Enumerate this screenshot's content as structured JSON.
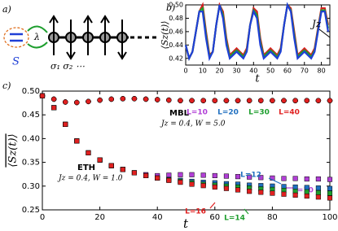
{
  "diagram": {
    "panel_label": "a)",
    "system_label": "S",
    "coupling_label": "λ",
    "site_labels": "σ₁ σ₂ ⋯"
  },
  "chart_data": [
    {
      "type": "line",
      "panel_label": "b)",
      "xlabel": "t",
      "ylabel": "⟨Sz(t)⟩",
      "annotations": [
        {
          "text": "Jz"
        }
      ],
      "x": [
        0,
        2,
        4,
        6,
        8,
        10,
        12,
        14,
        16,
        18,
        20,
        22,
        24,
        26,
        28,
        30,
        32,
        34,
        36,
        38,
        40,
        42,
        44,
        46,
        48,
        50,
        52,
        54,
        56,
        58,
        60,
        62,
        64,
        66,
        68,
        70,
        72,
        74,
        76,
        78,
        80,
        82,
        84
      ],
      "xlim": [
        0,
        85
      ],
      "xticks": [
        0,
        10,
        20,
        30,
        40,
        50,
        60,
        70,
        80
      ],
      "ylim": [
        0.41,
        0.5
      ],
      "yticks": [
        {
          "value": 0.42,
          "label": "0.42"
        },
        {
          "value": 0.44,
          "label": "0.44"
        },
        {
          "value": 0.46,
          "label": "0.46"
        },
        {
          "value": 0.48,
          "label": "0.48"
        },
        {
          "value": 0.5,
          "label": "0.50"
        }
      ],
      "series": [
        {
          "color": "#d62020",
          "values": [
            0.44,
            0.42,
            0.43,
            0.46,
            0.49,
            0.5,
            0.46,
            0.425,
            0.43,
            0.47,
            0.5,
            0.49,
            0.45,
            0.425,
            0.43,
            0.435,
            0.43,
            0.425,
            0.435,
            0.47,
            0.495,
            0.49,
            0.45,
            0.425,
            0.43,
            0.435,
            0.43,
            0.425,
            0.435,
            0.47,
            0.5,
            0.495,
            0.46,
            0.425,
            0.43,
            0.435,
            0.43,
            0.425,
            0.435,
            0.465,
            0.495,
            0.495,
            0.47
          ]
        },
        {
          "color": "#1e9e2e",
          "values": [
            0.44,
            0.42,
            0.43,
            0.46,
            0.49,
            0.495,
            0.455,
            0.422,
            0.43,
            0.47,
            0.5,
            0.485,
            0.445,
            0.422,
            0.428,
            0.432,
            0.428,
            0.422,
            0.432,
            0.47,
            0.492,
            0.485,
            0.445,
            0.422,
            0.428,
            0.432,
            0.428,
            0.422,
            0.432,
            0.47,
            0.5,
            0.492,
            0.455,
            0.422,
            0.428,
            0.432,
            0.428,
            0.422,
            0.432,
            0.462,
            0.492,
            0.492,
            0.465
          ]
        },
        {
          "color": "#1f3fd6",
          "values": [
            0.44,
            0.42,
            0.43,
            0.46,
            0.49,
            0.49,
            0.45,
            0.42,
            0.43,
            0.47,
            0.5,
            0.48,
            0.44,
            0.42,
            0.425,
            0.43,
            0.425,
            0.42,
            0.43,
            0.47,
            0.49,
            0.48,
            0.44,
            0.42,
            0.425,
            0.43,
            0.425,
            0.42,
            0.43,
            0.47,
            0.5,
            0.49,
            0.45,
            0.42,
            0.425,
            0.43,
            0.425,
            0.42,
            0.43,
            0.46,
            0.49,
            0.49,
            0.46
          ]
        }
      ]
    },
    {
      "type": "scatter",
      "panel_label": "c)",
      "xlabel": "t",
      "ylabel": "⟨Sz(t)⟩",
      "annotations": [
        {
          "text": "MBL"
        },
        {
          "text": "Jz = 0.4, W = 5.0"
        },
        {
          "text": "ETH"
        },
        {
          "text": "Jz = 0.4, W = 1.0"
        }
      ],
      "x": [
        0,
        4,
        8,
        12,
        16,
        20,
        24,
        28,
        32,
        36,
        40,
        44,
        48,
        52,
        56,
        60,
        64,
        68,
        72,
        76,
        80,
        84,
        88,
        92,
        96,
        100
      ],
      "xlim": [
        0,
        100
      ],
      "xticks": [
        0,
        20,
        40,
        60,
        80,
        100
      ],
      "ylim": [
        0.25,
        0.5
      ],
      "yticks": [
        0.25,
        {
          "value": 0.3,
          "label": "0.30"
        },
        0.35,
        {
          "value": 0.4,
          "label": "0.40"
        },
        0.45,
        {
          "value": 0.5,
          "label": "0.50"
        }
      ],
      "series": [
        {
          "name": "L=10",
          "color": "#b13fd6",
          "marker": "circle",
          "values": [
            0.49,
            0.483,
            0.477,
            0.476,
            0.478,
            0.481,
            0.483,
            0.484,
            0.484,
            0.483,
            0.482,
            0.481,
            0.48,
            0.48,
            0.48,
            0.48,
            0.48,
            0.48,
            0.48,
            0.48,
            0.48,
            0.48,
            0.48,
            0.48,
            0.48,
            0.48
          ]
        },
        {
          "name": "L=20",
          "color": "#1f6fc0",
          "marker": "circle",
          "values": [
            0.49,
            0.483,
            0.477,
            0.476,
            0.478,
            0.481,
            0.483,
            0.484,
            0.484,
            0.483,
            0.482,
            0.481,
            0.48,
            0.48,
            0.48,
            0.48,
            0.48,
            0.48,
            0.48,
            0.48,
            0.48,
            0.48,
            0.48,
            0.48,
            0.48,
            0.48
          ]
        },
        {
          "name": "L=30",
          "color": "#1e9e2e",
          "marker": "circle",
          "values": [
            0.49,
            0.483,
            0.477,
            0.476,
            0.478,
            0.481,
            0.483,
            0.484,
            0.484,
            0.483,
            0.482,
            0.481,
            0.48,
            0.48,
            0.48,
            0.48,
            0.48,
            0.48,
            0.48,
            0.48,
            0.48,
            0.48,
            0.48,
            0.48,
            0.48,
            0.48
          ]
        },
        {
          "name": "L=40",
          "color": "#e02020",
          "marker": "circle",
          "values": [
            0.49,
            0.483,
            0.477,
            0.476,
            0.478,
            0.481,
            0.483,
            0.484,
            0.484,
            0.483,
            0.482,
            0.481,
            0.48,
            0.48,
            0.48,
            0.48,
            0.48,
            0.48,
            0.48,
            0.48,
            0.48,
            0.48,
            0.48,
            0.48,
            0.48,
            0.48
          ]
        },
        {
          "name": "L=10",
          "color": "#b13fd6",
          "marker": "square",
          "values": [
            0.49,
            0.465,
            0.43,
            0.395,
            0.37,
            0.355,
            0.343,
            0.335,
            0.328,
            0.324,
            0.322,
            0.323,
            0.324,
            0.324,
            0.323,
            0.322,
            0.321,
            0.32,
            0.319,
            0.318,
            0.317,
            0.316,
            0.316,
            0.315,
            0.315,
            0.314
          ]
        },
        {
          "name": "L=12",
          "color": "#1f6fc0",
          "marker": "square",
          "values": [
            0.49,
            0.465,
            0.43,
            0.395,
            0.37,
            0.355,
            0.343,
            0.335,
            0.328,
            0.322,
            0.317,
            0.314,
            0.312,
            0.31,
            0.308,
            0.307,
            0.305,
            0.304,
            0.302,
            0.301,
            0.3,
            0.299,
            0.298,
            0.297,
            0.296,
            0.295
          ]
        },
        {
          "name": "L=14",
          "color": "#1e9e2e",
          "marker": "square",
          "values": [
            0.49,
            0.465,
            0.43,
            0.395,
            0.37,
            0.355,
            0.343,
            0.335,
            0.328,
            0.322,
            0.317,
            0.313,
            0.31,
            0.307,
            0.304,
            0.302,
            0.3,
            0.298,
            0.296,
            0.294,
            0.293,
            0.291,
            0.289,
            0.288,
            0.286,
            0.285
          ]
        },
        {
          "name": "L=16",
          "color": "#e02020",
          "marker": "square",
          "values": [
            0.49,
            0.465,
            0.43,
            0.395,
            0.37,
            0.355,
            0.343,
            0.335,
            0.328,
            0.322,
            0.317,
            0.312,
            0.308,
            0.304,
            0.301,
            0.298,
            0.295,
            0.292,
            0.289,
            0.287,
            0.285,
            0.283,
            0.281,
            0.279,
            0.277,
            0.275
          ]
        }
      ]
    }
  ]
}
